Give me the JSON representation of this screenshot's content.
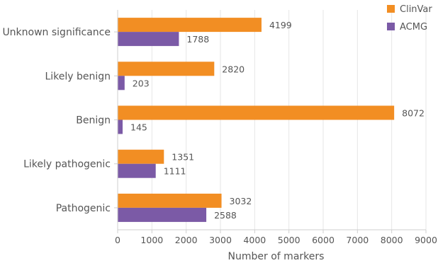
{
  "chart_data": {
    "type": "bar",
    "orientation": "horizontal",
    "categories": [
      "Unknown significance",
      "Likely benign",
      "Benign",
      "Likely pathogenic",
      "Pathogenic"
    ],
    "series": [
      {
        "name": "ClinVar",
        "color": "#f28e23",
        "values": [
          4199,
          2820,
          8072,
          1351,
          3032
        ]
      },
      {
        "name": "ACMG",
        "color": "#7b5aa6",
        "values": [
          1788,
          203,
          145,
          1111,
          2588
        ]
      }
    ],
    "xlabel": "Number of markers",
    "ylabel": "",
    "xlim": [
      0,
      9000
    ],
    "xticks": [
      "0",
      "1000",
      "2000",
      "3000",
      "4000",
      "5000",
      "6000",
      "7000",
      "8000",
      "9000"
    ],
    "grid": "vertical",
    "legend_position": "top-right"
  }
}
